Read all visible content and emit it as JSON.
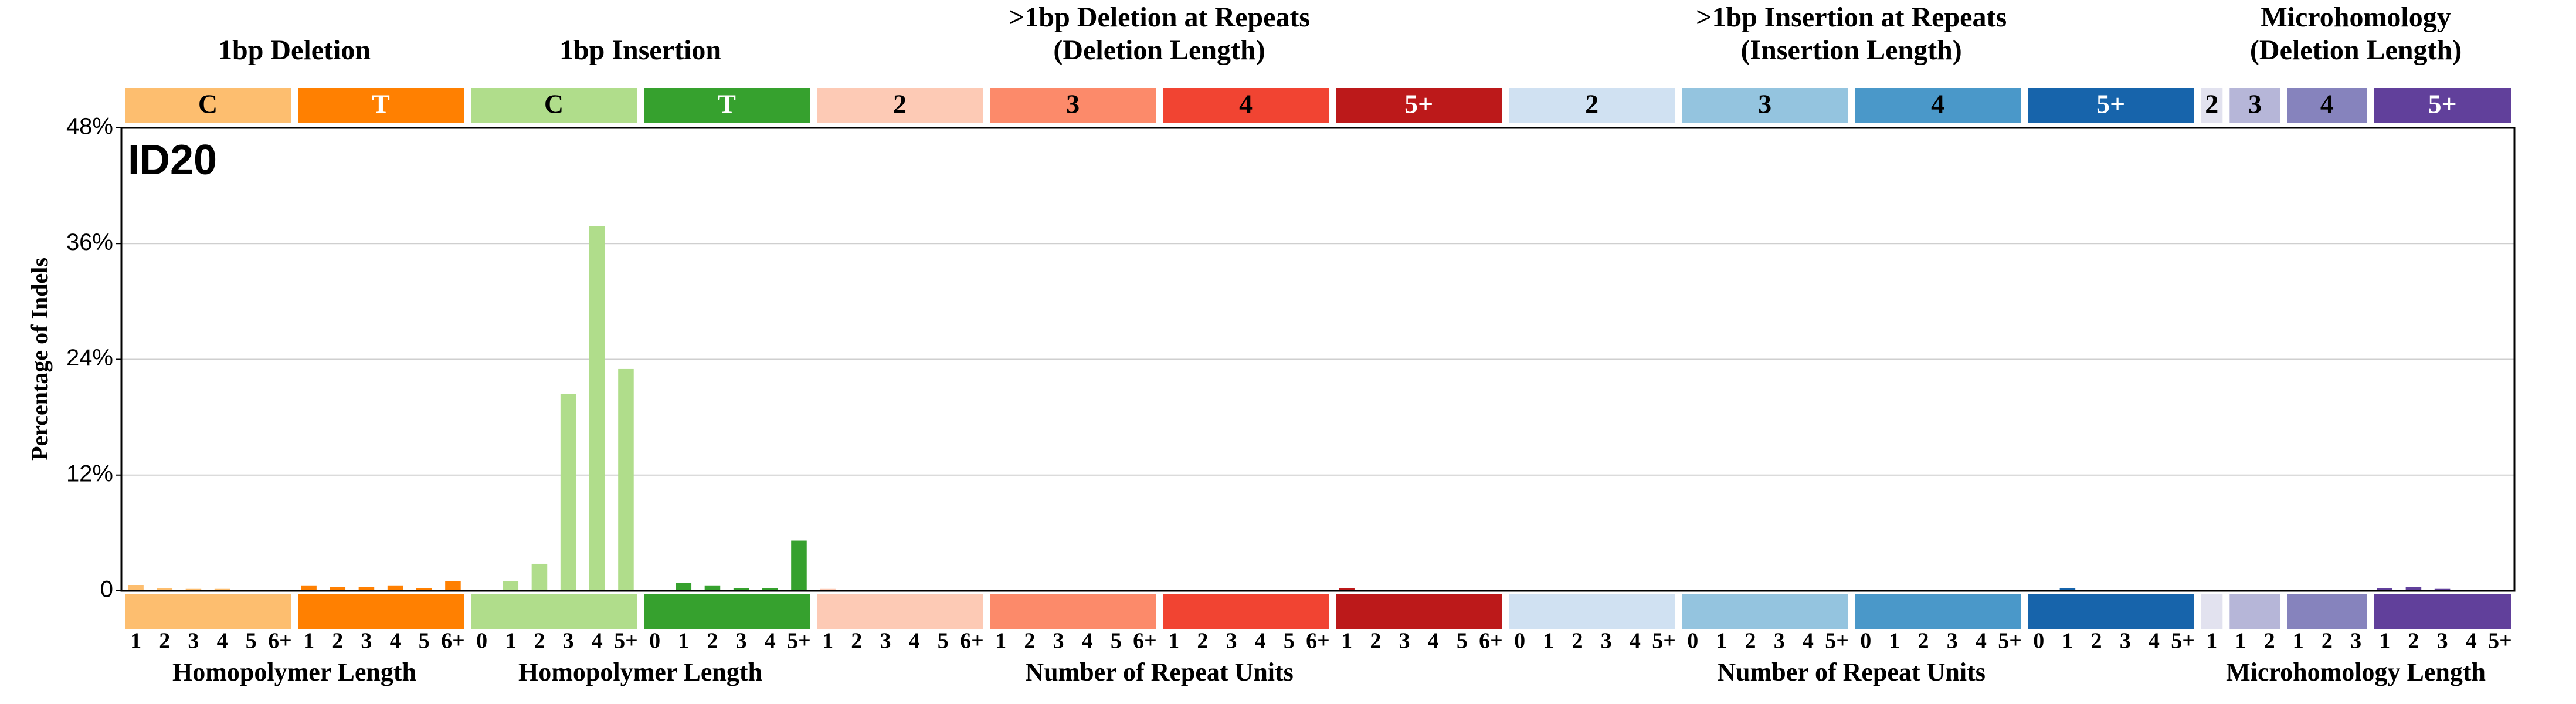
{
  "chart_data": {
    "type": "bar",
    "title": "ID20",
    "y_label": "Percentage of Indels",
    "ylim": [
      0,
      48
    ],
    "yticks": [
      0,
      {
        "value": 12,
        "label": "12%"
      },
      {
        "value": 24,
        "label": "24%"
      },
      {
        "value": 36,
        "label": "36%"
      },
      {
        "value": 48,
        "label": "48%"
      }
    ],
    "grid": true,
    "sections": [
      {
        "title": [
          "1bp Deletion"
        ],
        "x_label": "Homopolymer Length",
        "groups": [
          {
            "label": "C",
            "color": "#fdbe6f",
            "label_color": "#000000",
            "categories": [
              "1",
              "2",
              "3",
              "4",
              "5",
              "6+"
            ],
            "values": [
              0.6,
              0.3,
              0.2,
              0.2,
              0.1,
              0.1
            ]
          },
          {
            "label": "T",
            "color": "#ff8001",
            "label_color": "#ffffff",
            "categories": [
              "1",
              "2",
              "3",
              "4",
              "5",
              "6+"
            ],
            "values": [
              0.5,
              0.4,
              0.4,
              0.5,
              0.3,
              1.0
            ]
          }
        ]
      },
      {
        "title": [
          "1bp Insertion"
        ],
        "x_label": "Homopolymer Length",
        "groups": [
          {
            "label": "C",
            "color": "#b0dd8b",
            "label_color": "#000000",
            "categories": [
              "0",
              "1",
              "2",
              "3",
              "4",
              "5+"
            ],
            "values": [
              0.1,
              1.0,
              2.8,
              20.4,
              37.8,
              23.0
            ]
          },
          {
            "label": "T",
            "color": "#36a12e",
            "label_color": "#ffffff",
            "categories": [
              "0",
              "1",
              "2",
              "3",
              "4",
              "5+"
            ],
            "values": [
              0.1,
              0.8,
              0.5,
              0.3,
              0.3,
              5.2
            ]
          }
        ]
      },
      {
        "title": [
          ">1bp Deletion at Repeats",
          "(Deletion Length)"
        ],
        "x_label": "Number of Repeat Units",
        "groups": [
          {
            "label": "2",
            "color": "#fdcab5",
            "label_color": "#000000",
            "categories": [
              "1",
              "2",
              "3",
              "4",
              "5",
              "6+"
            ],
            "values": [
              0.2,
              0.1,
              0.1,
              0.05,
              0,
              0
            ]
          },
          {
            "label": "3",
            "color": "#fc8a6a",
            "label_color": "#000000",
            "categories": [
              "1",
              "2",
              "3",
              "4",
              "5",
              "6+"
            ],
            "values": [
              0.05,
              0.05,
              0,
              0,
              0,
              0
            ]
          },
          {
            "label": "4",
            "color": "#f14432",
            "label_color": "#000000",
            "categories": [
              "1",
              "2",
              "3",
              "4",
              "5",
              "6+"
            ],
            "values": [
              0.05,
              0,
              0,
              0,
              0,
              0
            ]
          },
          {
            "label": "5+",
            "color": "#bc191a",
            "label_color": "#ffffff",
            "categories": [
              "1",
              "2",
              "3",
              "4",
              "5",
              "6+"
            ],
            "values": [
              0.3,
              0.05,
              0.05,
              0,
              0,
              0
            ]
          }
        ]
      },
      {
        "title": [
          ">1bp Insertion at Repeats",
          "(Insertion Length)"
        ],
        "x_label": "Number of Repeat Units",
        "groups": [
          {
            "label": "2",
            "color": "#d0e1f2",
            "label_color": "#000000",
            "categories": [
              "0",
              "1",
              "2",
              "3",
              "4",
              "5+"
            ],
            "values": [
              0.1,
              0.1,
              0.1,
              0.05,
              0,
              0
            ]
          },
          {
            "label": "3",
            "color": "#94c4df",
            "label_color": "#000000",
            "categories": [
              "0",
              "1",
              "2",
              "3",
              "4",
              "5+"
            ],
            "values": [
              0.05,
              0.05,
              0,
              0,
              0,
              0
            ]
          },
          {
            "label": "4",
            "color": "#4a98c9",
            "label_color": "#000000",
            "categories": [
              "0",
              "1",
              "2",
              "3",
              "4",
              "5+"
            ],
            "values": [
              0.05,
              0,
              0,
              0,
              0,
              0
            ]
          },
          {
            "label": "5+",
            "color": "#1764ab",
            "label_color": "#ffffff",
            "categories": [
              "0",
              "1",
              "2",
              "3",
              "4",
              "5+"
            ],
            "values": [
              0.1,
              0.3,
              0.05,
              0,
              0,
              0
            ]
          }
        ]
      },
      {
        "title": [
          "Microhomology",
          "(Deletion Length)"
        ],
        "x_label": "Microhomology Length",
        "groups": [
          {
            "label": "2",
            "color": "#e2e2ef",
            "label_color": "#000000",
            "categories": [
              "1"
            ],
            "values": [
              0.05
            ]
          },
          {
            "label": "3",
            "color": "#b6b6d8",
            "label_color": "#000000",
            "categories": [
              "1",
              "2"
            ],
            "values": [
              0.1,
              0.05
            ]
          },
          {
            "label": "4",
            "color": "#8683bd",
            "label_color": "#000000",
            "categories": [
              "1",
              "2",
              "3"
            ],
            "values": [
              0.05,
              0,
              0
            ]
          },
          {
            "label": "5+",
            "color": "#61409b",
            "label_color": "#ffffff",
            "categories": [
              "1",
              "2",
              "3",
              "4",
              "5+"
            ],
            "values": [
              0.3,
              0.4,
              0.2,
              0.1,
              0.1
            ]
          }
        ]
      }
    ]
  }
}
